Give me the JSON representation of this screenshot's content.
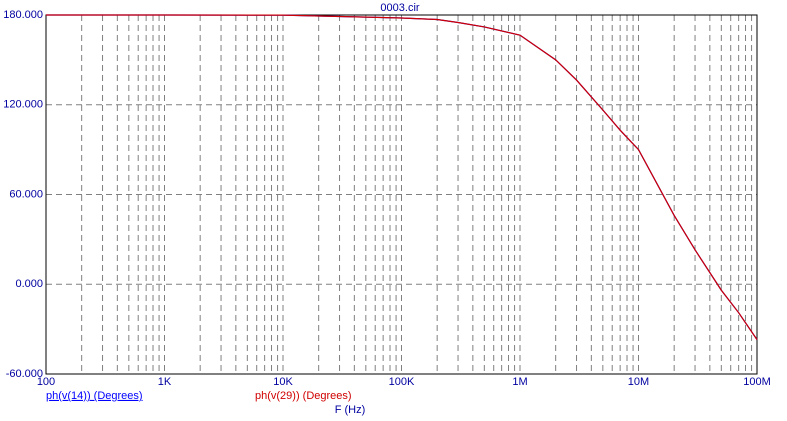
{
  "chart_data": {
    "type": "line",
    "title": "0003.cir",
    "x_label": "F (Hz)",
    "log_x": true,
    "grid": true,
    "minor_grid": true,
    "x": [
      100,
      1000,
      10000,
      100000,
      200000,
      300000,
      500000,
      1000000,
      2000000,
      3000000,
      5000000,
      7000000,
      10000000,
      20000000,
      30000000,
      50000000,
      70000000,
      100000000
    ],
    "series": [
      {
        "name": "ph(v(14)) (Degrees)",
        "color": "#0000ff",
        "values": [
          180,
          180,
          179.9,
          178,
          177,
          175,
          172,
          166.5,
          150,
          136.5,
          116.5,
          103,
          90,
          46,
          23,
          -4,
          -19,
          -37
        ]
      },
      {
        "name": "ph(v(29)) (Degrees)",
        "color": "#d00000",
        "values": [
          180,
          180,
          179.9,
          178,
          177,
          175,
          172,
          166.5,
          150,
          136.5,
          116.5,
          103,
          90,
          46,
          23,
          -4,
          -19,
          -37
        ]
      }
    ],
    "xlim": [
      100,
      100000000
    ],
    "xticks": [
      100,
      {
        "value": 1000,
        "label": "1K"
      },
      {
        "value": 10000,
        "label": "10K"
      },
      {
        "value": 100000,
        "label": "100K"
      },
      {
        "value": 1000000,
        "label": "1M"
      },
      {
        "value": 10000000,
        "label": "10M"
      },
      {
        "value": 100000000,
        "label": "100M"
      }
    ],
    "ylim": [
      -60,
      180
    ],
    "yticks": [
      {
        "value": -60,
        "label": "-60.000"
      },
      {
        "value": 0,
        "label": "0.000"
      },
      {
        "value": 60,
        "label": "60.000"
      },
      {
        "value": 120,
        "label": "120.000"
      },
      {
        "value": 180,
        "label": "180.000"
      }
    ]
  }
}
